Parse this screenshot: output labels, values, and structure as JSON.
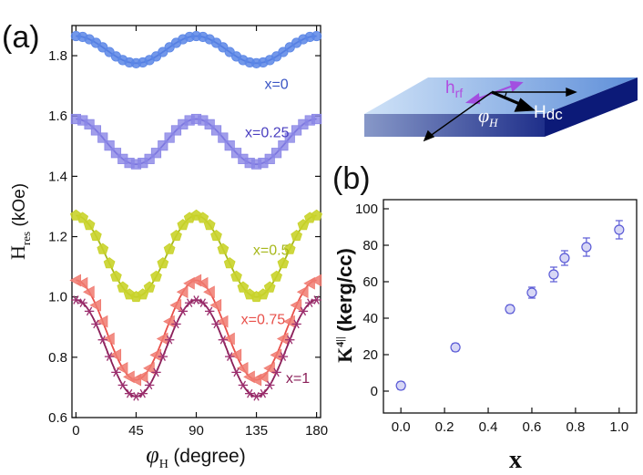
{
  "chart_data": [
    {
      "panel": "(a)",
      "type": "line",
      "xlabel_symbol": "φ",
      "xlabel_subscript": "H",
      "xlabel_unit": "(degree)",
      "ylabel_symbol": "H",
      "ylabel_subscript": "res",
      "ylabel_unit": "(kOe)",
      "xlim": [
        -3,
        183
      ],
      "ylim": [
        0.6,
        1.9
      ],
      "xticks": [
        "0",
        "45",
        "90",
        "135",
        "180"
      ],
      "yticks": [
        "0.6",
        "0.8",
        "1.0",
        "1.2",
        "1.4",
        "1.6",
        "1.8"
      ],
      "series": [
        {
          "name": "x=0",
          "label": "x=0",
          "marker": "circle",
          "color": "#5b86e6",
          "line_color": "#3a55c4",
          "mean": 1.82,
          "amplitude": 0.045,
          "label_x": 150,
          "label_y": 1.69
        },
        {
          "name": "x=0.25",
          "label": "x=0.25",
          "marker": "square",
          "color": "#8a86e6",
          "line_color": "#4a3fc0",
          "mean": 1.515,
          "amplitude": 0.075,
          "label_x": 143,
          "label_y": 1.53
        },
        {
          "name": "x=0.5",
          "label": "x=0.5",
          "marker": "pentagon",
          "color": "#c9d32a",
          "line_color": "#a7b81b",
          "mean": 1.135,
          "amplitude": 0.135,
          "label_x": 146,
          "label_y": 1.14
        },
        {
          "name": "x=0.75",
          "label": "x=0.75",
          "marker": "triangle",
          "color": "#f07a70",
          "line_color": "#e8504a",
          "mean": 0.89,
          "amplitude": 0.165,
          "label_x": 140,
          "label_y": 0.91
        },
        {
          "name": "x=1",
          "label": "x=1",
          "marker": "star",
          "color": "#9c2f6e",
          "line_color": "#8a1f58",
          "mean": 0.83,
          "amplitude": 0.16,
          "label_x": 166,
          "label_y": 0.715
        }
      ]
    },
    {
      "panel": "(b)",
      "type": "scatter",
      "xlabel": "x",
      "ylabel_main": "K",
      "ylabel_sup": "4||",
      "ylabel_unit": "(kerg/cc)",
      "xlim": [
        -0.08,
        1.08
      ],
      "ylim": [
        -12,
        105
      ],
      "xticks": [
        "0.0",
        "0.2",
        "0.4",
        "0.6",
        "0.8",
        "1.0"
      ],
      "yticks": [
        "0",
        "20",
        "40",
        "60",
        "80",
        "100"
      ],
      "x": [
        0.0,
        0.25,
        0.5,
        0.6,
        0.7,
        0.75,
        0.85,
        1.0
      ],
      "y": [
        3,
        24,
        45,
        54,
        64,
        73,
        79,
        88.5
      ],
      "error": [
        2,
        2,
        2,
        3,
        4,
        4,
        5,
        5
      ],
      "color": "#5a5ad6",
      "fill": "#d7d7f5"
    }
  ],
  "inset": {
    "h_rf": "h",
    "h_rf_sub": "rf",
    "h_dc": "H",
    "h_dc_sub": "dc",
    "phi": "φ",
    "phi_sub": "H"
  }
}
